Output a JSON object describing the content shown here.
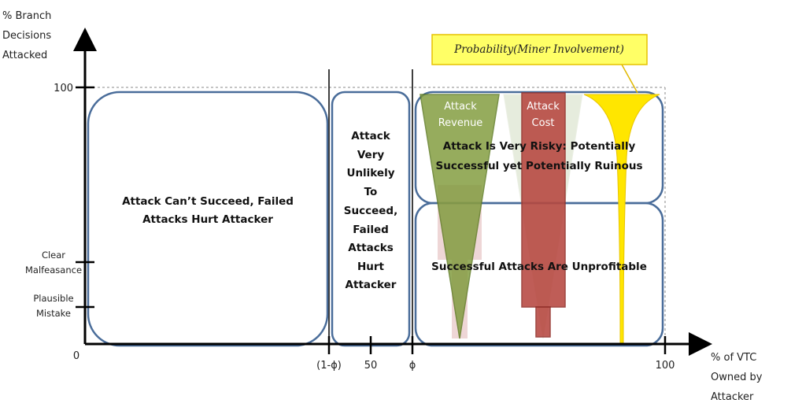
{
  "y_axis": {
    "title_lines": [
      "% Branch",
      "Decisions",
      "Attacked"
    ],
    "ticks": {
      "top": "100",
      "clear": [
        "Clear",
        "Malfeasance"
      ],
      "plausible": [
        "Plausible",
        "Mistake"
      ],
      "origin": "0"
    }
  },
  "x_axis": {
    "title_lines": [
      "% of VTC",
      "Owned by",
      "Attacker"
    ],
    "ticks": {
      "one_minus_phi": "(1-ϕ)",
      "fifty": "50",
      "phi": "ϕ",
      "hundred": "100"
    }
  },
  "regions": {
    "left": [
      "Attack Can’t Succeed, Failed",
      "Attacks Hurt Attacker"
    ],
    "middle": [
      "Attack",
      "Very",
      "Unlikely",
      "To",
      "Succeed,",
      "Failed",
      "Attacks",
      "Hurt",
      "Attacker"
    ],
    "right_top": [
      "Attack Is Very Risky: Potentially",
      "Successful yet Potentially Ruinous"
    ],
    "right_bottom": "Successful Attacks Are Unprofitable"
  },
  "shapes": {
    "revenue": [
      "Attack",
      "Revenue"
    ],
    "cost": [
      "Attack",
      "Cost"
    ]
  },
  "callout": "Probability(Miner Involvement)",
  "colors": {
    "box_border": "#4a6d9a",
    "revenue": "#7f9a3a",
    "cost": "#b5413a",
    "probability": "#ffe600",
    "callout_fill": "#ffff66"
  }
}
